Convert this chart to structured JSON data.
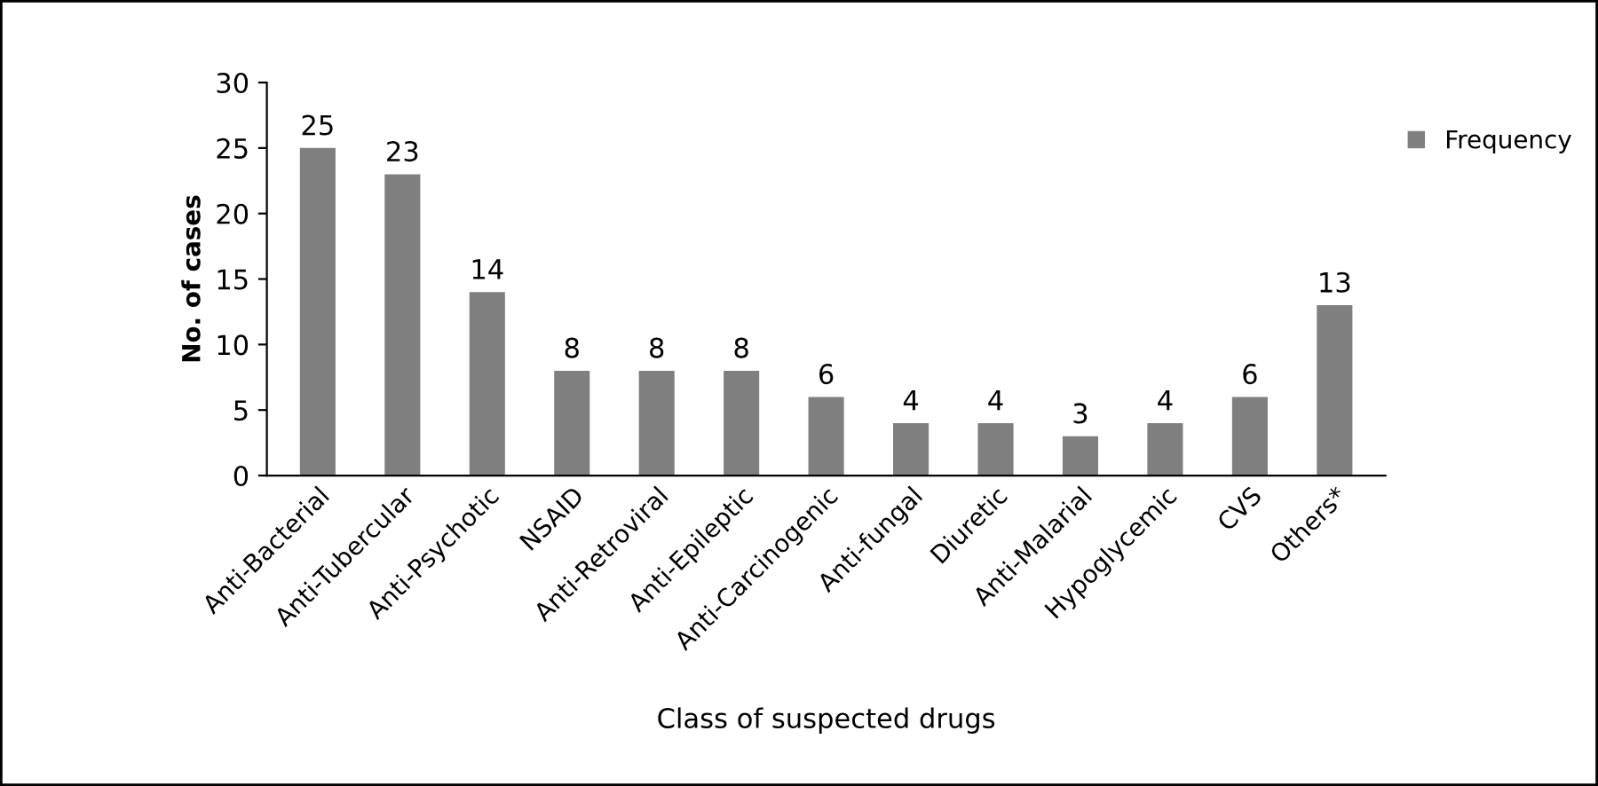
{
  "chart_data": {
    "type": "bar",
    "xlabel": "Class of suspected drugs",
    "ylabel": "No. of cases",
    "categories": [
      "Anti-Bacterial",
      "Anti-Tubercular",
      "Anti-Psychotic",
      "NSAID",
      "Anti-Retroviral",
      "Anti-Epileptic",
      "Anti-Carcinogenic",
      "Anti-fungal",
      "Diuretic",
      "Anti-Malarial",
      "Hypoglycemic",
      "CVS",
      "Others*"
    ],
    "series": [
      {
        "name": "Frequency",
        "color": "#7f7f7f",
        "values": [
          25,
          23,
          14,
          8,
          8,
          8,
          6,
          4,
          4,
          3,
          4,
          6,
          13
        ]
      }
    ],
    "ylim": [
      0,
      30
    ],
    "yticks": [
      0,
      5,
      10,
      15,
      20,
      25,
      30
    ],
    "data_labels": true,
    "legend": "right",
    "grid": false
  }
}
